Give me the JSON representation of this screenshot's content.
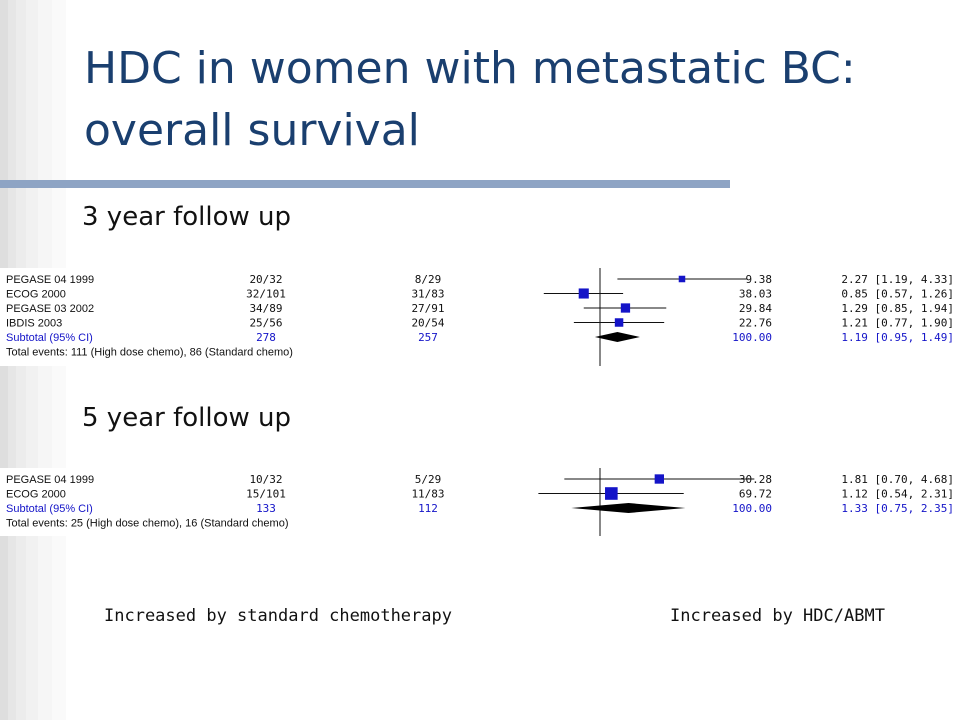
{
  "slide": {
    "title": "HDC in women with metastatic BC: overall survival",
    "subhead_3yr": "3 year follow up",
    "subhead_5yr": "5 year follow up",
    "axis_left_label": "Increased by standard chemotherapy",
    "axis_right_label": "Increased by HDC/ABMT",
    "colors": {
      "title": "#1a3f6f",
      "accent_bar": "#8ea4c4",
      "marker": "#1414c8",
      "subtotal_text": "#1414c8"
    }
  },
  "chart_data": [
    {
      "type": "forest",
      "follow_up": "3 year follow up",
      "scale": "log",
      "null_value": 1,
      "studies": [
        {
          "name": "PEGASE 04 1999",
          "treatment": "20/32",
          "control": "8/29",
          "weight": "9.38",
          "estimate_text": "2.27 [1.19, 4.33]",
          "or": 2.27,
          "lo": 1.19,
          "hi": 4.33,
          "w": 9.38
        },
        {
          "name": "ECOG 2000",
          "treatment": "32/101",
          "control": "31/83",
          "weight": "38.03",
          "estimate_text": "0.85 [0.57, 1.26]",
          "or": 0.85,
          "lo": 0.57,
          "hi": 1.26,
          "w": 38.03
        },
        {
          "name": "PEGASE 03 2002",
          "treatment": "34/89",
          "control": "27/91",
          "weight": "29.84",
          "estimate_text": "1.29 [0.85, 1.94]",
          "or": 1.29,
          "lo": 0.85,
          "hi": 1.94,
          "w": 29.84
        },
        {
          "name": "IBDIS 2003",
          "treatment": "25/56",
          "control": "20/54",
          "weight": "22.76",
          "estimate_text": "1.21 [0.77, 1.90]",
          "or": 1.21,
          "lo": 0.77,
          "hi": 1.9,
          "w": 22.76
        }
      ],
      "subtotal": {
        "name": "Subtotal (95% CI)",
        "treatment": "278",
        "control": "257",
        "weight": "100.00",
        "estimate_text": "1.19 [0.95, 1.49]",
        "or": 1.19,
        "lo": 0.95,
        "hi": 1.49
      },
      "total_events": "Total events: 111 (High dose chemo), 86 (Standard chemo)"
    },
    {
      "type": "forest",
      "follow_up": "5 year follow up",
      "scale": "log",
      "null_value": 1,
      "studies": [
        {
          "name": "PEGASE 04 1999",
          "treatment": "10/32",
          "control": "5/29",
          "weight": "30.28",
          "estimate_text": "1.81 [0.70, 4.68]",
          "or": 1.81,
          "lo": 0.7,
          "hi": 4.68,
          "w": 30.28
        },
        {
          "name": "ECOG 2000",
          "treatment": "15/101",
          "control": "11/83",
          "weight": "69.72",
          "estimate_text": "1.12 [0.54, 2.31]",
          "or": 1.12,
          "lo": 0.54,
          "hi": 2.31,
          "w": 69.72
        }
      ],
      "subtotal": {
        "name": "Subtotal (95% CI)",
        "treatment": "133",
        "control": "112",
        "weight": "100.00",
        "estimate_text": "1.33 [0.75, 2.35]",
        "or": 1.33,
        "lo": 0.75,
        "hi": 2.35
      },
      "total_events": "Total events: 25 (High dose chemo), 16 (Standard chemo)"
    }
  ]
}
